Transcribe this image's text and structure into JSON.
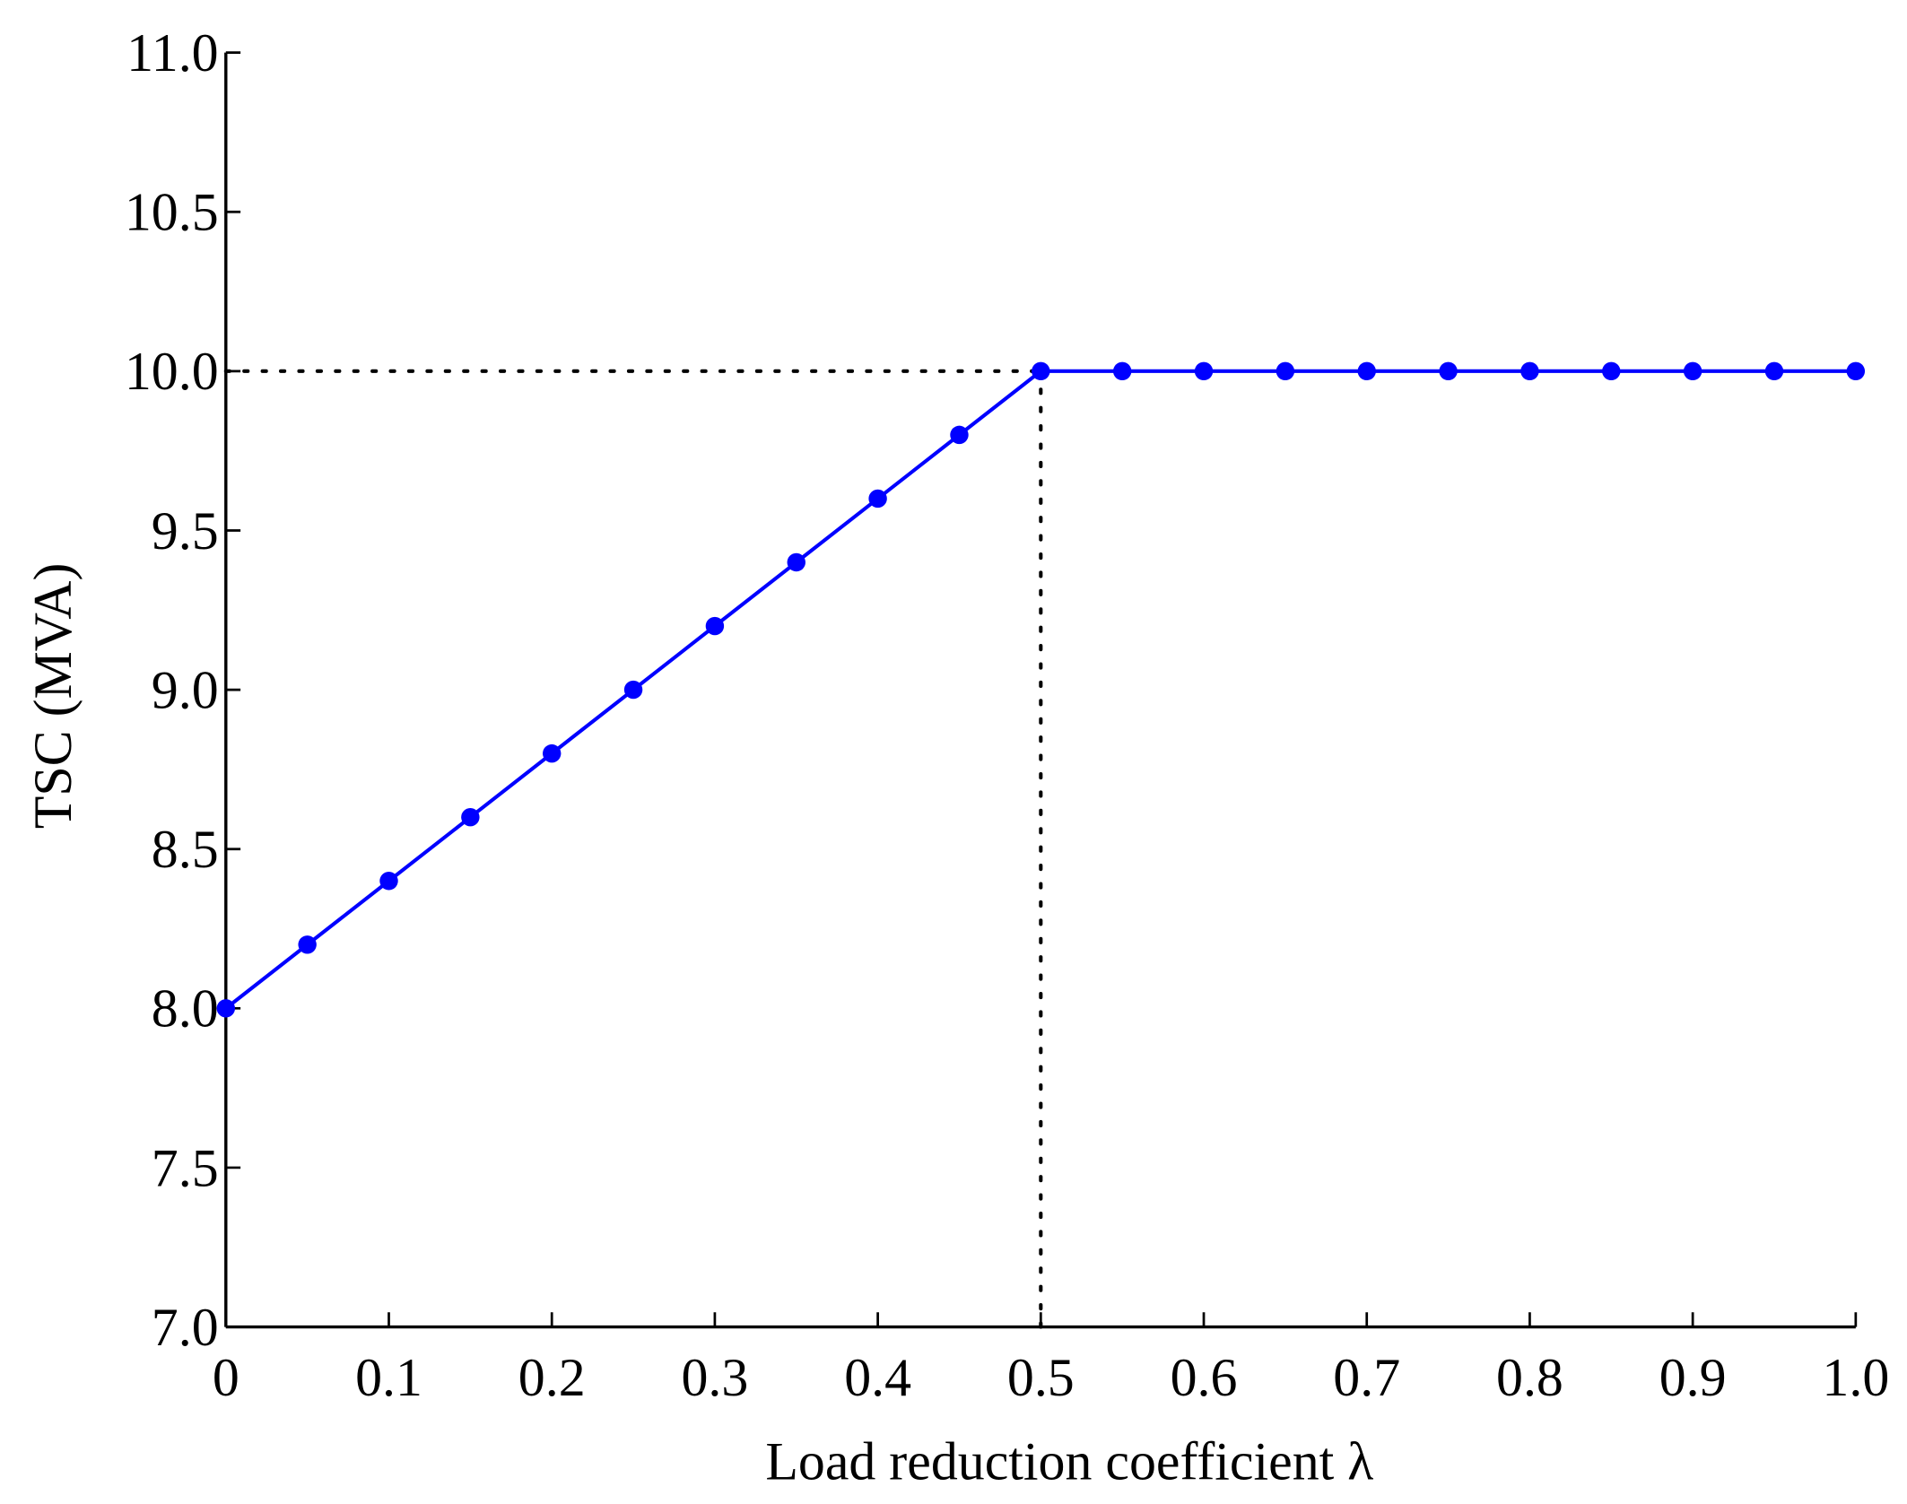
{
  "chart_data": {
    "type": "line",
    "xlabel": "Load reduction coefficient λ",
    "ylabel": "TSC (MVA)",
    "x": [
      0,
      0.05,
      0.1,
      0.15,
      0.2,
      0.25,
      0.3,
      0.35,
      0.4,
      0.45,
      0.5,
      0.55,
      0.6,
      0.65,
      0.7,
      0.75,
      0.8,
      0.85,
      0.9,
      0.95,
      1.0
    ],
    "series": [
      {
        "color": "#0000ff",
        "values": [
          8.0,
          8.2,
          8.4,
          8.6,
          8.8,
          9.0,
          9.2,
          9.4,
          9.6,
          9.8,
          10.0,
          10.0,
          10.0,
          10.0,
          10.0,
          10.0,
          10.0,
          10.0,
          10.0,
          10.0,
          10.0
        ]
      }
    ],
    "reference": {
      "x": 0.5,
      "y": 10.0,
      "color": "#000000"
    },
    "xlim": [
      0,
      1.0
    ],
    "ylim": [
      7.0,
      11.0
    ],
    "xticks": [
      0,
      0.1,
      0.2,
      0.3,
      0.4,
      0.5,
      0.6,
      0.7,
      0.8,
      0.9,
      {
        "value": 1.0,
        "label": "1.0"
      }
    ],
    "yticks": [
      {
        "value": 7.0,
        "label": "7.0"
      },
      7.5,
      {
        "value": 8.0,
        "label": "8.0"
      },
      8.5,
      {
        "value": 9.0,
        "label": "9.0"
      },
      9.5,
      {
        "value": 10.0,
        "label": "10.0"
      },
      10.5,
      {
        "value": 11.0,
        "label": "11.0"
      }
    ],
    "grid": false
  }
}
